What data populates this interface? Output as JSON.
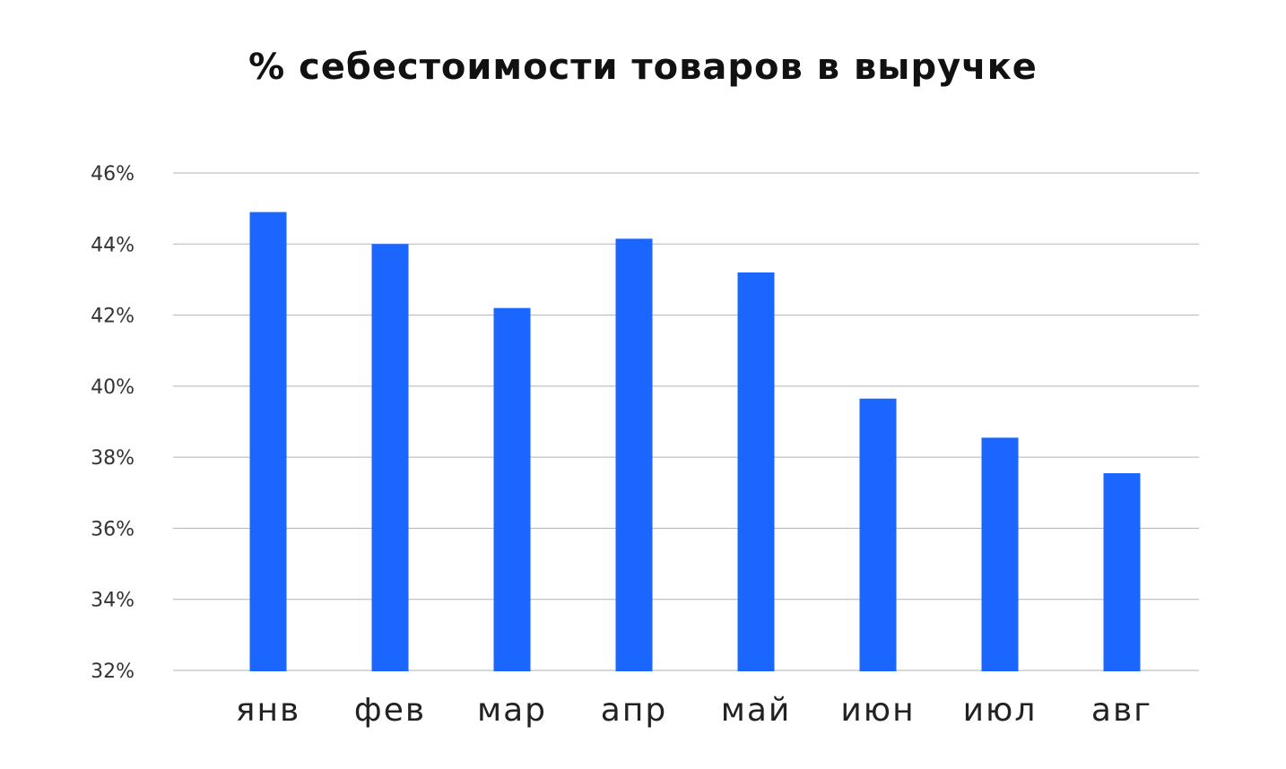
{
  "chart_data": {
    "type": "bar",
    "title": "% себестоимости товаров в выручке",
    "xlabel": "",
    "ylabel": "",
    "categories": [
      "янв",
      "фев",
      "мар",
      "апр",
      "май",
      "июн",
      "июл",
      "авг"
    ],
    "values": [
      44.9,
      44.0,
      42.2,
      44.15,
      43.2,
      39.65,
      38.55,
      37.55
    ],
    "ylim": [
      32,
      46
    ],
    "yticks": [
      "46%",
      "44%",
      "42%",
      "40%",
      "38%",
      "36%",
      "34%",
      "32%"
    ],
    "ytick_values": [
      46,
      44,
      42,
      40,
      38,
      36,
      34,
      32
    ],
    "grid": true,
    "bar_color": "#1a66ff",
    "grid_color": "#b3b3b3"
  }
}
